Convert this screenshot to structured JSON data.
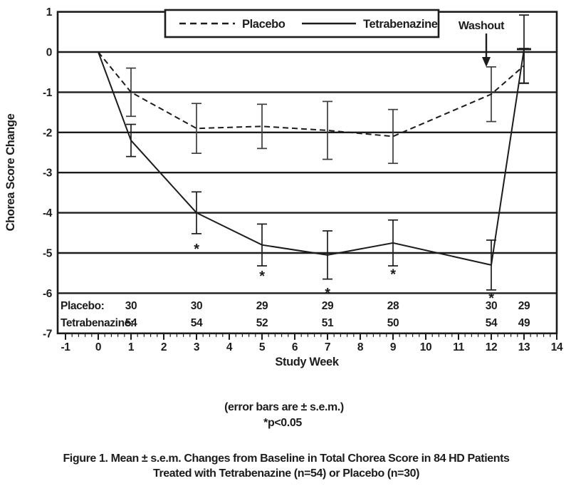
{
  "figure": {
    "washout_label": "Washout",
    "legend": {
      "placebo": "Placebo",
      "tetrabenazine": "Tetrabenazine"
    },
    "notes": {
      "sem": "(error bars are ± s.e.m.)",
      "pvalue": "*p<0.05"
    },
    "caption_line1": "Figure 1. Mean ± s.e.m. Changes from Baseline in Total Chorea Score in 84 HD Patients",
    "caption_line2": "Treated with Tetrabenazine (n=54) or Placebo (n=30)"
  },
  "colors": {
    "ink": "#1c1c1c",
    "placebo_errorbar": "#3d3d3d",
    "background": "#ffffff"
  },
  "chart_data": {
    "type": "line",
    "title": "",
    "xlabel": "Study Week",
    "ylabel": "Chorea Score Change",
    "xlim": [
      -1,
      14
    ],
    "ylim": [
      -7,
      1
    ],
    "x_ticks": [
      -1,
      0,
      1,
      2,
      3,
      4,
      5,
      6,
      7,
      8,
      9,
      10,
      11,
      12,
      13,
      14
    ],
    "y_ticks": [
      1,
      0,
      -1,
      -2,
      -3,
      -4,
      -5,
      -6,
      -7
    ],
    "gridlines_y": [
      0,
      -1,
      -2,
      -3,
      -4,
      -5,
      -6
    ],
    "grid": true,
    "legend_position": "top-center-inside",
    "x": [
      0,
      1,
      3,
      5,
      7,
      9,
      12,
      13
    ],
    "series": [
      {
        "name": "Placebo",
        "line_style": "dashed",
        "values": [
          0,
          -1.0,
          -1.9,
          -1.85,
          -1.95,
          -2.1,
          -1.05,
          -0.34
        ],
        "sem": [
          0,
          0.6,
          0.62,
          0.55,
          0.72,
          0.67,
          0.68,
          0.43
        ]
      },
      {
        "name": "Tetrabenazine",
        "line_style": "solid",
        "values": [
          0,
          -2.2,
          -4.0,
          -4.8,
          -5.05,
          -4.75,
          -5.3,
          0.07
        ],
        "sem": [
          0,
          0.4,
          0.52,
          0.52,
          0.6,
          0.57,
          0.62,
          0.85
        ],
        "point_tick": {
          "week": 13,
          "value": 0.07
        }
      }
    ],
    "significance_markers": [
      {
        "week": 3,
        "y": -4.82,
        "symbol": "*"
      },
      {
        "week": 5,
        "y": -5.5,
        "symbol": "*"
      },
      {
        "week": 7,
        "y": -5.92,
        "symbol": "*"
      },
      {
        "week": 9,
        "y": -5.45,
        "symbol": "*"
      },
      {
        "week": 12,
        "y": -6.05,
        "symbol": "*"
      }
    ],
    "washout": {
      "label": "Washout",
      "arrow_week": 12
    },
    "n_table": {
      "weeks": [
        1,
        3,
        5,
        7,
        9,
        12,
        13
      ],
      "rows": [
        {
          "label": "Placebo:",
          "values": [
            30,
            30,
            29,
            29,
            28,
            30,
            29
          ]
        },
        {
          "label": "Tetrabenazine:",
          "values": [
            54,
            54,
            52,
            51,
            50,
            54,
            49
          ]
        }
      ]
    }
  }
}
